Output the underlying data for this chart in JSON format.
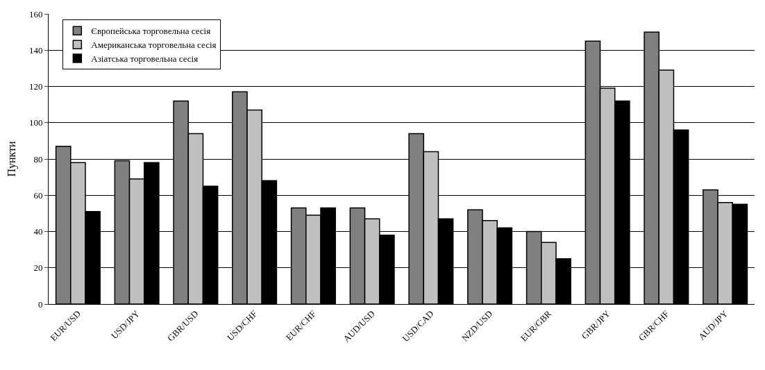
{
  "chart_data": {
    "type": "bar",
    "ylabel": "Пункти",
    "categories": [
      "EUR/USD",
      "USD/JPY",
      "GBR/USD",
      "USD/CHF",
      "EUR/CHF",
      "AUD/USD",
      "USD/CAD",
      "NZD/USD",
      "EUR/GBR",
      "GBR/JPY",
      "GBR/CHF",
      "AUD/JPY"
    ],
    "series": [
      {
        "name": "Європейська торговельна сесія",
        "color": "#808080",
        "values": [
          87,
          79,
          112,
          117,
          53,
          53,
          94,
          52,
          40,
          145,
          150,
          63
        ]
      },
      {
        "name": "Американська торговельна сесія",
        "color": "#c0c0c0",
        "values": [
          78,
          69,
          94,
          107,
          49,
          47,
          84,
          46,
          34,
          119,
          129,
          56
        ]
      },
      {
        "name": "Азіатська торговельна сесія",
        "color": "#000000",
        "values": [
          51,
          78,
          65,
          68,
          53,
          38,
          47,
          42,
          25,
          112,
          96,
          55
        ]
      }
    ],
    "ylim": [
      0,
      160
    ],
    "yticks": [
      0,
      20,
      40,
      60,
      80,
      100,
      120,
      140,
      160
    ],
    "grid": "y",
    "legend": "top left"
  }
}
